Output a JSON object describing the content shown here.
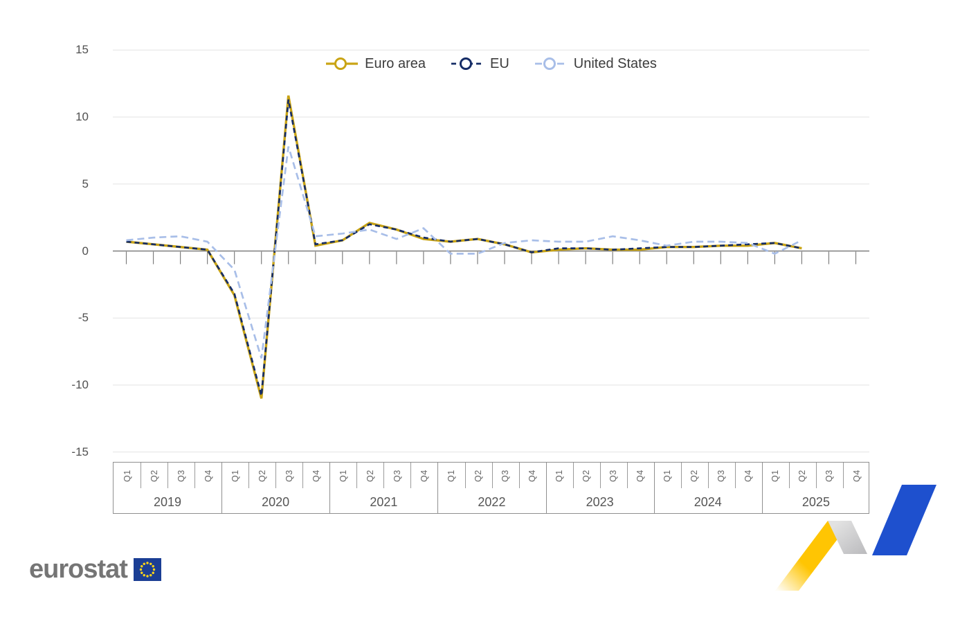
{
  "branding": {
    "logo_text": "eurostat"
  },
  "chart_data": {
    "type": "line",
    "title": "",
    "subtitle": "",
    "grid": true,
    "legend_position": "top-center",
    "y_axis": {
      "min": -15,
      "max": 15,
      "ticks": [
        15,
        10,
        5,
        0,
        -5,
        -10,
        -15
      ]
    },
    "x_axis": {
      "years": [
        "2019",
        "2020",
        "2021",
        "2022",
        "2023",
        "2024",
        "2025"
      ],
      "quarters": [
        "Q1",
        "Q2",
        "Q3",
        "Q4"
      ],
      "categories": [
        "2019 Q1",
        "2019 Q2",
        "2019 Q3",
        "2019 Q4",
        "2020 Q1",
        "2020 Q2",
        "2020 Q3",
        "2020 Q4",
        "2021 Q1",
        "2021 Q2",
        "2021 Q3",
        "2021 Q4",
        "2022 Q1",
        "2022 Q2",
        "2022 Q3",
        "2022 Q4",
        "2023 Q1",
        "2023 Q2",
        "2023 Q3",
        "2023 Q4",
        "2024 Q1",
        "2024 Q2",
        "2024 Q3",
        "2024 Q4",
        "2025 Q1",
        "2025 Q2",
        "2025 Q3",
        "2025 Q4"
      ]
    },
    "series": [
      {
        "name": "Euro area",
        "color": "#C9A415",
        "dash": "solid",
        "values": [
          0.7,
          0.5,
          0.3,
          0.1,
          -3.3,
          -11.0,
          11.6,
          0.4,
          0.8,
          2.1,
          1.6,
          0.9,
          0.7,
          0.9,
          0.5,
          -0.1,
          0.1,
          0.2,
          0.1,
          0.1,
          0.3,
          0.3,
          0.4,
          0.4,
          0.6,
          0.2,
          null,
          null
        ]
      },
      {
        "name": "EU",
        "color": "#152C66",
        "dash": "dashed",
        "values": [
          0.7,
          0.5,
          0.3,
          0.1,
          -3.2,
          -10.8,
          11.3,
          0.5,
          0.8,
          2.0,
          1.6,
          1.0,
          0.7,
          0.9,
          0.5,
          -0.1,
          0.2,
          0.2,
          0.1,
          0.2,
          0.3,
          0.3,
          0.4,
          0.5,
          0.6,
          0.2,
          null,
          null
        ]
      },
      {
        "name": "United States",
        "color": "#A8BEE8",
        "dash": "dashed",
        "values": [
          0.8,
          1.0,
          1.1,
          0.7,
          -1.4,
          -8.0,
          7.8,
          1.1,
          1.3,
          1.6,
          0.9,
          1.7,
          -0.2,
          -0.2,
          0.6,
          0.8,
          0.7,
          0.7,
          1.1,
          0.8,
          0.4,
          0.7,
          0.7,
          0.6,
          -0.2,
          0.8,
          null,
          null
        ]
      }
    ],
    "colors": {
      "gridline": "#E3E3E3",
      "zero_axis": "#7E7E7E",
      "axis_text": "#505050"
    }
  },
  "decoration": {
    "ribbon": {
      "rise_yellow": "#FFC503",
      "fold_gray": "#C8C8C8",
      "surge_blue": "#1E50CE"
    },
    "eu_flag": {
      "background": "#1B3E94",
      "stars": "#FFD617"
    }
  }
}
